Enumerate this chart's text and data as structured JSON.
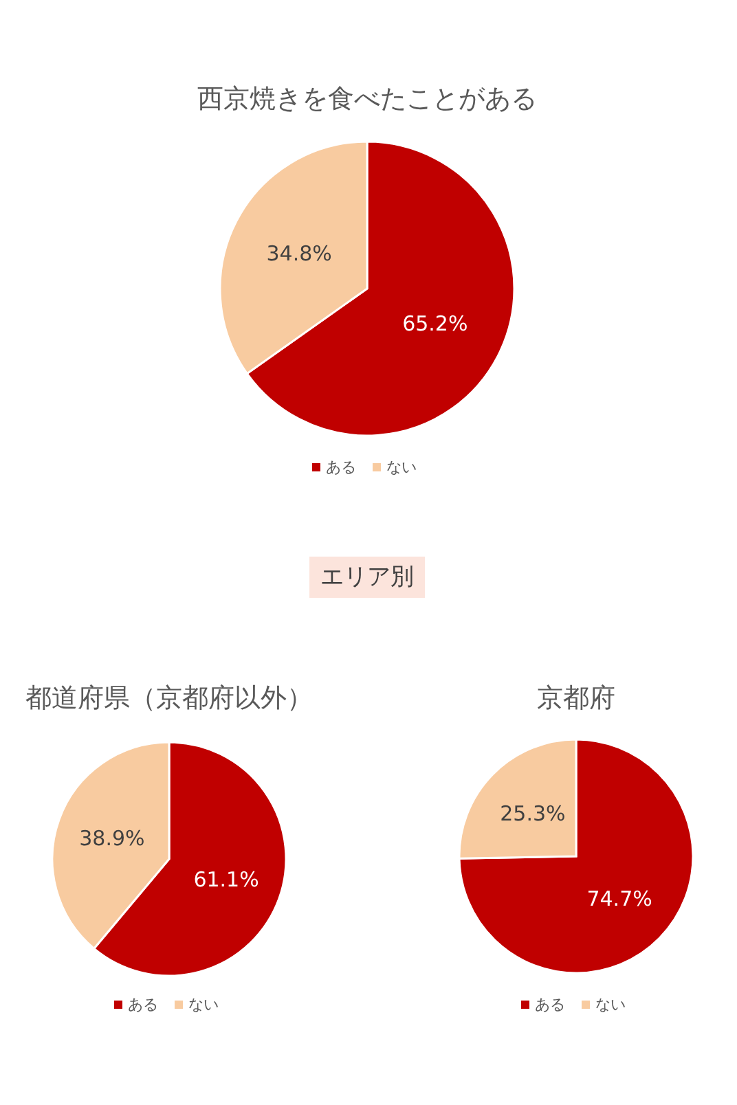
{
  "chart_data": [
    {
      "type": "pie",
      "title": "西京焼きを食べたことがある",
      "categories": [
        "ある",
        "ない"
      ],
      "values": [
        65.2,
        34.8
      ],
      "colors": [
        "#c00000",
        "#f8cba0"
      ],
      "value_labels": [
        "65.2%",
        "34.8%"
      ],
      "legend": "bottom"
    },
    {
      "type": "other",
      "title": "エリア別"
    },
    {
      "type": "pie",
      "title": "都道府県（京都府以外）",
      "categories": [
        "ある",
        "ない"
      ],
      "values": [
        61.1,
        38.9
      ],
      "colors": [
        "#c00000",
        "#f8cba0"
      ],
      "value_labels": [
        "61.1%",
        "38.9%"
      ],
      "legend": "bottom"
    },
    {
      "type": "pie",
      "title": "京都府",
      "categories": [
        "ある",
        "ない"
      ],
      "values": [
        74.7,
        25.3
      ],
      "colors": [
        "#c00000",
        "#f8cba0"
      ],
      "value_labels": [
        "74.7%",
        "25.3%"
      ],
      "legend": "bottom"
    }
  ]
}
